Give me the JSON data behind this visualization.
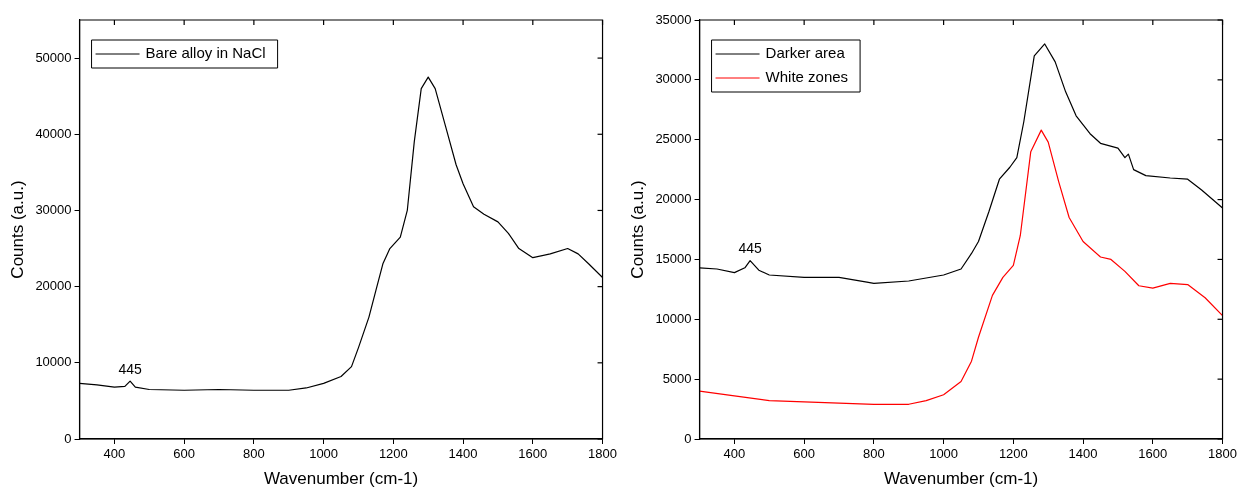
{
  "chart_data": [
    {
      "type": "line",
      "xlabel": "Wavenumber (cm-1)",
      "ylabel": "Counts (a.u.)",
      "xlim": [
        300,
        1800
      ],
      "xticks": [
        400,
        600,
        800,
        1000,
        1200,
        1400,
        1600,
        1800
      ],
      "ylim": [
        0,
        55000
      ],
      "yticks": [
        0,
        10000,
        20000,
        30000,
        40000,
        50000
      ],
      "legend": "top left",
      "marker": "none",
      "line_style": "solid",
      "grid": false,
      "annotations": [
        {
          "text": "445",
          "x": 445,
          "y": 7600
        }
      ],
      "series": [
        {
          "name": "Bare alloy in NaCl",
          "color": "#000000",
          "x": [
            300,
            350,
            400,
            430,
            445,
            460,
            500,
            600,
            700,
            800,
            900,
            950,
            1000,
            1050,
            1080,
            1100,
            1130,
            1150,
            1170,
            1190,
            1220,
            1240,
            1260,
            1280,
            1300,
            1320,
            1350,
            1380,
            1400,
            1430,
            1460,
            1500,
            1530,
            1560,
            1600,
            1650,
            1700,
            1730,
            1760,
            1800
          ],
          "values": [
            7300,
            7100,
            6800,
            6900,
            7600,
            6800,
            6500,
            6400,
            6500,
            6400,
            6400,
            6700,
            7300,
            8200,
            9500,
            12000,
            16000,
            19500,
            23000,
            25000,
            26500,
            30000,
            39000,
            46000,
            47500,
            46000,
            41000,
            36000,
            33500,
            30500,
            29500,
            28500,
            27000,
            25000,
            23800,
            24300,
            25000,
            24300,
            23000,
            21200
          ]
        }
      ]
    },
    {
      "type": "line",
      "xlabel": "Wavenumber (cm-1)",
      "ylabel": "Counts (a.u.)",
      "xlim": [
        300,
        1800
      ],
      "xticks": [
        400,
        600,
        800,
        1000,
        1200,
        1400,
        1600,
        1800
      ],
      "ylim": [
        0,
        35000
      ],
      "yticks": [
        0,
        5000,
        10000,
        15000,
        20000,
        25000,
        30000,
        35000
      ],
      "legend": "top left",
      "marker": "none",
      "line_style": "solid",
      "grid": false,
      "annotations": [
        {
          "text": "445",
          "x": 445,
          "y": 14900
        }
      ],
      "series": [
        {
          "name": "Darker area",
          "color": "#000000",
          "x": [
            300,
            350,
            400,
            430,
            445,
            470,
            500,
            600,
            700,
            780,
            800,
            900,
            1000,
            1050,
            1080,
            1100,
            1130,
            1160,
            1190,
            1210,
            1230,
            1260,
            1290,
            1320,
            1350,
            1380,
            1420,
            1450,
            1500,
            1520,
            1530,
            1545,
            1580,
            1650,
            1700,
            1740,
            1780,
            1800
          ],
          "values": [
            14300,
            14200,
            13900,
            14300,
            14900,
            14100,
            13700,
            13500,
            13500,
            13100,
            13000,
            13200,
            13700,
            14200,
            15500,
            16500,
            19000,
            21700,
            22700,
            23500,
            26500,
            32000,
            33000,
            31500,
            29000,
            27000,
            25500,
            24700,
            24300,
            23500,
            23800,
            22500,
            22000,
            21800,
            21700,
            20800,
            19800,
            19300
          ]
        },
        {
          "name": "White zones",
          "color": "#ff0000",
          "x": [
            300,
            400,
            500,
            600,
            800,
            900,
            950,
            1000,
            1050,
            1080,
            1100,
            1140,
            1170,
            1200,
            1220,
            1250,
            1280,
            1300,
            1330,
            1360,
            1400,
            1450,
            1480,
            1520,
            1560,
            1600,
            1650,
            1700,
            1750,
            1800
          ],
          "values": [
            4000,
            3600,
            3200,
            3100,
            2900,
            2900,
            3200,
            3700,
            4800,
            6500,
            8500,
            12000,
            13500,
            14500,
            17000,
            24000,
            25800,
            24800,
            21500,
            18500,
            16500,
            15200,
            15000,
            14000,
            12800,
            12600,
            13000,
            12900,
            11800,
            10300
          ]
        }
      ]
    }
  ]
}
